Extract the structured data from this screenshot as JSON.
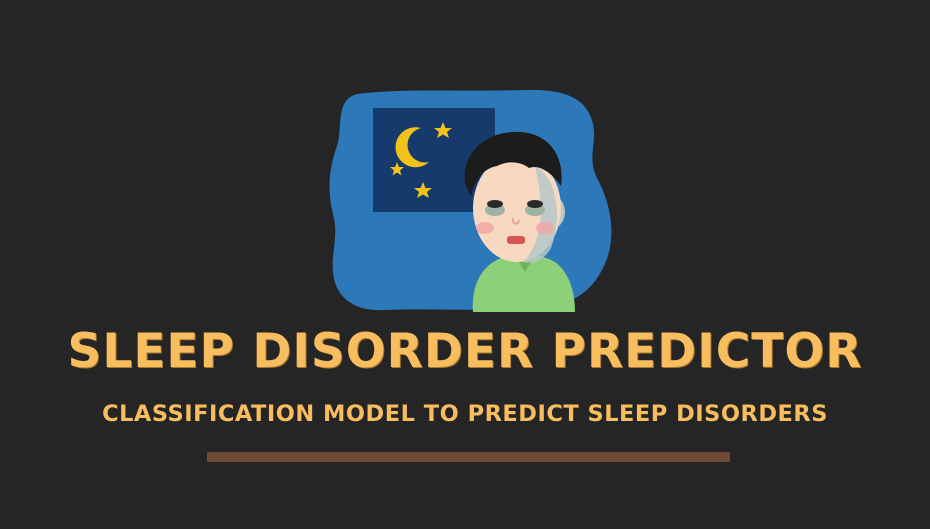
{
  "header": {
    "title": "SLEEP DISORDER PREDICTOR",
    "subtitle": "CLASSIFICATION MODEL TO PREDICT SLEEP DISORDERS"
  },
  "colors": {
    "background": "#252525",
    "accent": "#F8BD5E",
    "divider": "#6E4A37",
    "night_sky": "#2D78B9"
  },
  "illustration": {
    "icon": "sleepless-boy-illustration"
  }
}
